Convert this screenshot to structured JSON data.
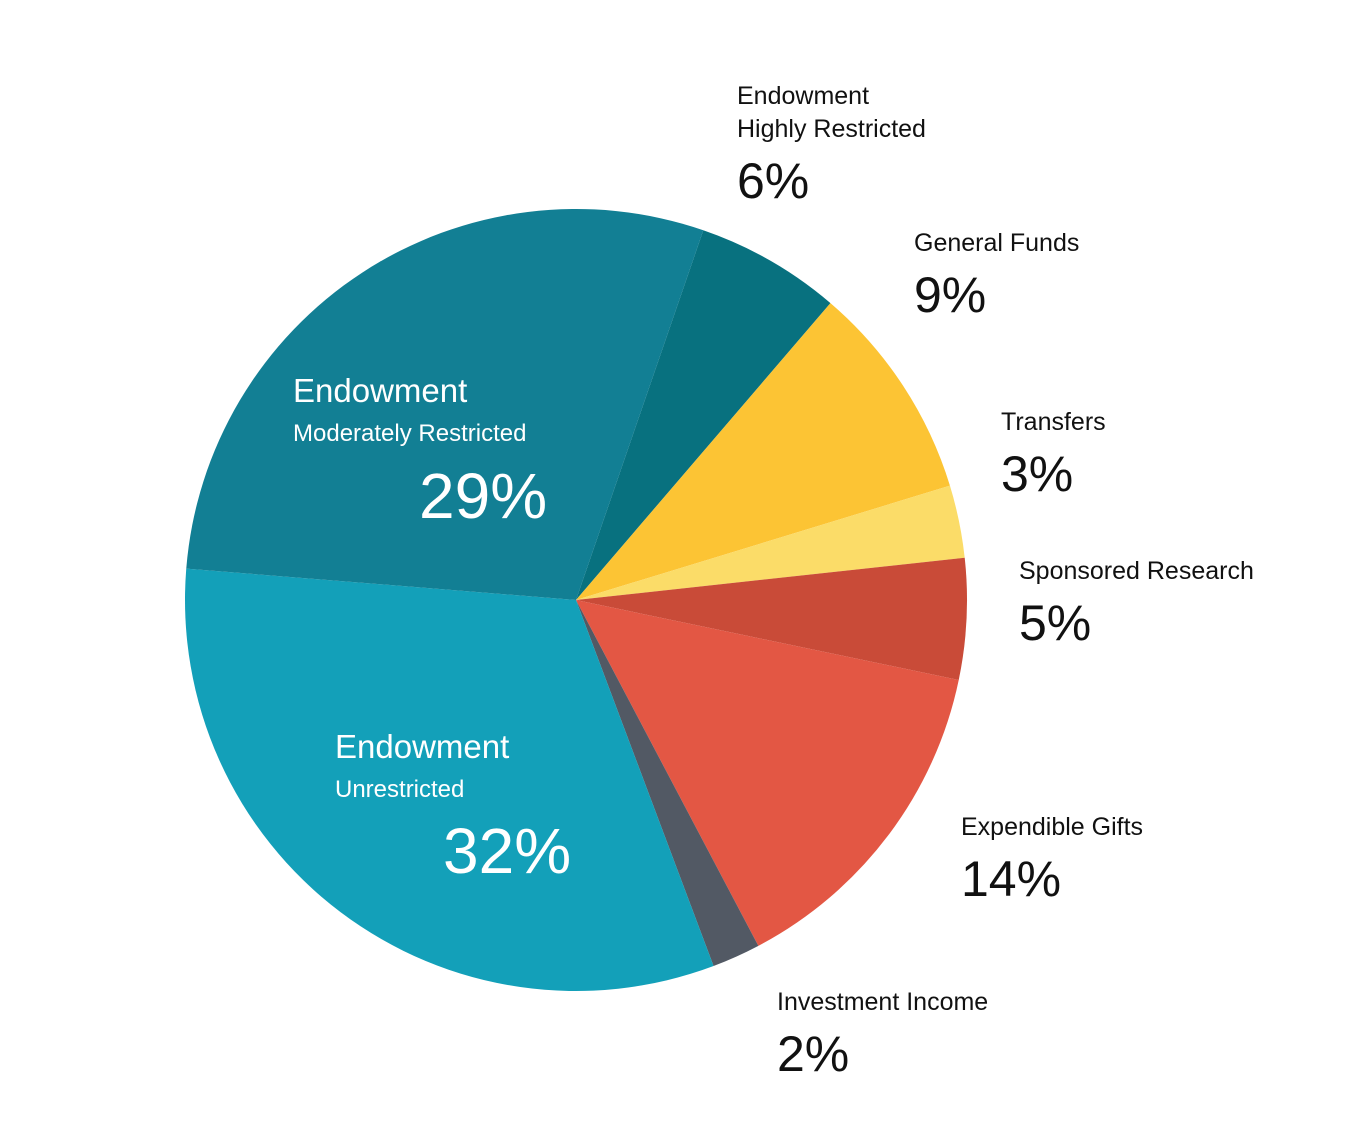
{
  "chart_data": {
    "type": "pie",
    "title": "",
    "slices": [
      {
        "name_line1": "Endowment",
        "name_line2": "Highly Restricted",
        "value": 6,
        "label": "6%",
        "color": "#08717F",
        "label_style": "outside"
      },
      {
        "name_line1": "General Funds",
        "name_line2": "",
        "value": 9,
        "label": "9%",
        "color": "#FCC434",
        "label_style": "outside"
      },
      {
        "name_line1": "Transfers",
        "name_line2": "",
        "value": 3,
        "label": "3%",
        "color": "#FBDC68",
        "label_style": "outside"
      },
      {
        "name_line1": "Sponsored Research",
        "name_line2": "",
        "value": 5,
        "label": "5%",
        "color": "#C94B38",
        "label_style": "outside"
      },
      {
        "name_line1": "Expendible Gifts",
        "name_line2": "",
        "value": 14,
        "label": "14%",
        "color": "#E35744",
        "label_style": "outside"
      },
      {
        "name_line1": "Investment Income",
        "name_line2": "",
        "value": 2,
        "label": "2%",
        "color": "#525964",
        "label_style": "outside"
      },
      {
        "name_line1": "Endowment",
        "name_line2": "Unrestricted",
        "value": 32,
        "label": "32%",
        "color": "#13A0B9",
        "label_style": "inside"
      },
      {
        "name_line1": "Endowment",
        "name_line2": "Moderately Restricted",
        "value": 29,
        "label": "29%",
        "color": "#127F94",
        "label_style": "inside"
      }
    ]
  }
}
